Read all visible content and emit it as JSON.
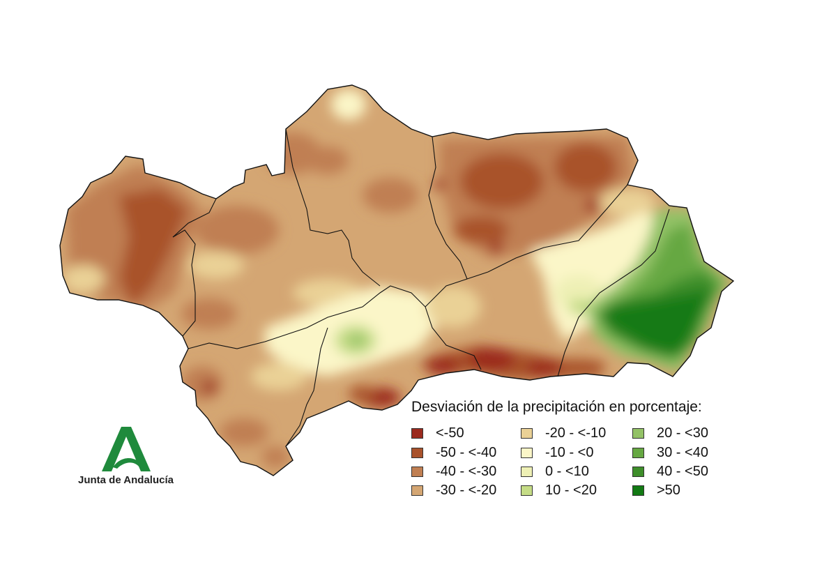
{
  "legend": {
    "title": "Desviación de la precipitación en porcentaje:",
    "classes": [
      {
        "label": "<-50",
        "color": "#9b2a1e"
      },
      {
        "label": "-50 - <-40",
        "color": "#a9522b"
      },
      {
        "label": "-40 - <-30",
        "color": "#c07f52"
      },
      {
        "label": "-30 - <-20",
        "color": "#d4a673"
      },
      {
        "label": "-20 - <-10",
        "color": "#ead196"
      },
      {
        "label": "-10 - <0",
        "color": "#fbf6c8"
      },
      {
        "label": "0 - <10",
        "color": "#eef0b5"
      },
      {
        "label": "10 - <20",
        "color": "#c5dc86"
      },
      {
        "label": "20 - <30",
        "color": "#93c266"
      },
      {
        "label": "30 - <40",
        "color": "#66a842"
      },
      {
        "label": "40 - <50",
        "color": "#3e8e2a"
      },
      {
        "label": ">50",
        "color": "#137a14"
      }
    ]
  },
  "logo": {
    "text": "Junta de Andalucía",
    "color": "#1f8a3c"
  }
}
